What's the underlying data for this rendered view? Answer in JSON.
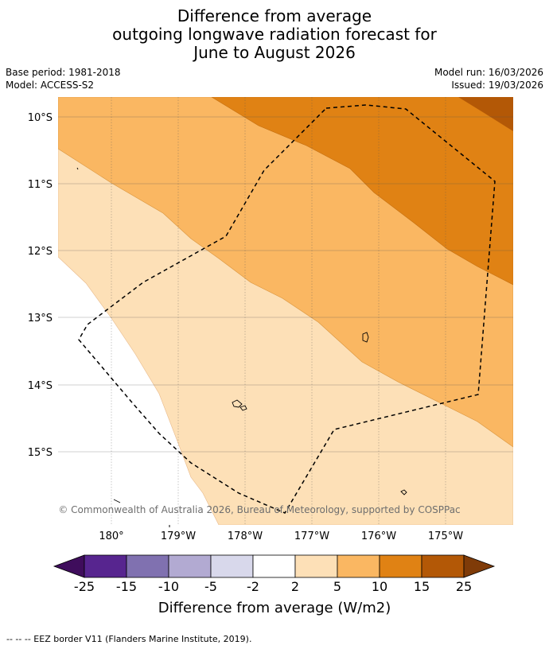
{
  "title": {
    "line1": "Difference from average",
    "line2": "outgoing longwave radiation forecast for",
    "line3": "June to August 2026"
  },
  "meta": {
    "base_period": "Base period: 1981-2018",
    "model": "Model: ACCESS-S2",
    "model_run": "Model run: 16/03/2026",
    "issued": "Issued: 19/03/2026"
  },
  "map": {
    "lat_labels": [
      "10°S",
      "11°S",
      "12°S",
      "13°S",
      "14°S",
      "15°S"
    ],
    "lon_labels": [
      "180°",
      "179°W",
      "178°W",
      "177°W",
      "176°W",
      "175°W"
    ],
    "copyright": "© Commonwealth of Australia 2026, Bureau of Meteorology, supported by COSPPac"
  },
  "colorbar": {
    "ticks": [
      "-25",
      "-15",
      "-10",
      "-5",
      "-2",
      "2",
      "5",
      "10",
      "15",
      "25"
    ],
    "colors": [
      "#3f0d5c",
      "#57258f",
      "#8071b0",
      "#b2aad2",
      "#d8d8eb",
      "#ffffff",
      "#fde0b7",
      "#fab762",
      "#e08214",
      "#b35806",
      "#7f3b08"
    ],
    "label": "Difference from average (W/m2)"
  },
  "footer": "--  --  -- EEZ border V11 (Flanders Marine Institute, 2019)."
}
